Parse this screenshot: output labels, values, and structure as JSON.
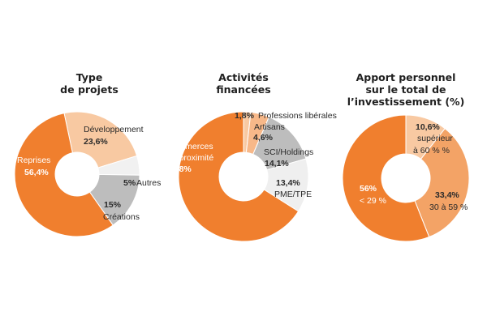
{
  "chart_data": [
    {
      "type": "pie",
      "title_lines": [
        "Type",
        "de projets"
      ],
      "categories": [
        "Développement",
        "Autres",
        "Créations",
        "Reprises"
      ],
      "values": [
        23.6,
        5,
        15,
        56.4
      ],
      "value_labels": [
        "23,6%",
        "5%",
        "15%",
        "56,4%"
      ],
      "colors": [
        "#f8c9a2",
        "#f1f1f1",
        "#bdbdbd",
        "#f07f2e"
      ]
    },
    {
      "type": "pie",
      "title_lines": [
        "Activités",
        "financées"
      ],
      "categories": [
        "Professions libérales",
        "Artisans",
        "SCI/Holdings",
        "PME/TPE",
        "Commerces de proximité"
      ],
      "values": [
        1.8,
        4.6,
        14.1,
        13.4,
        65.8
      ],
      "value_labels": [
        "1,8%",
        "4,6%",
        "14,1%",
        "13,4%",
        "65,8%"
      ],
      "colors": [
        "#f8c9a2",
        "#f7b889",
        "#bdbdbd",
        "#efefef",
        "#f07f2e"
      ]
    },
    {
      "type": "pie",
      "title_lines": [
        "Apport personnel",
        "sur le total de",
        "l’investissement (%)"
      ],
      "categories": [
        "supérieur à 60 % %",
        "30 à 59 %",
        "< 29 %"
      ],
      "values": [
        10.6,
        33.4,
        56
      ],
      "value_labels": [
        "10,6%",
        "33,4%",
        "56%"
      ],
      "colors": [
        "#f8c9a2",
        "#f3a366",
        "#f07f2e"
      ]
    }
  ],
  "labels": {
    "c1": {
      "dev_name": "Développement",
      "dev_value": "23,6%",
      "autres_value": "5%",
      "autres_name": "Autres",
      "creations_value": "15%",
      "creations_name": "Créations",
      "reprises_name": "Reprises",
      "reprises_value": "56,4%"
    },
    "c2": {
      "prof_value": "1,8%",
      "prof_name": "Professions libérales",
      "artisans_name": "Artisans",
      "artisans_value": "4,6%",
      "sci_name": "SCI/Holdings",
      "sci_value": "14,1%",
      "pme_value": "13,4%",
      "pme_name": "PME/TPE",
      "commerces_name_1": "Commerces",
      "commerces_name_2": "de proximité",
      "commerces_value": "65,8%"
    },
    "c3": {
      "sup_value": "10,6%",
      "sup_name_1": "supérieur",
      "sup_name_2": "à 60 % %",
      "mid_value": "33,4%",
      "mid_name": "30 à 59 %",
      "low_value": "56%",
      "low_name": "< 29 %"
    }
  }
}
